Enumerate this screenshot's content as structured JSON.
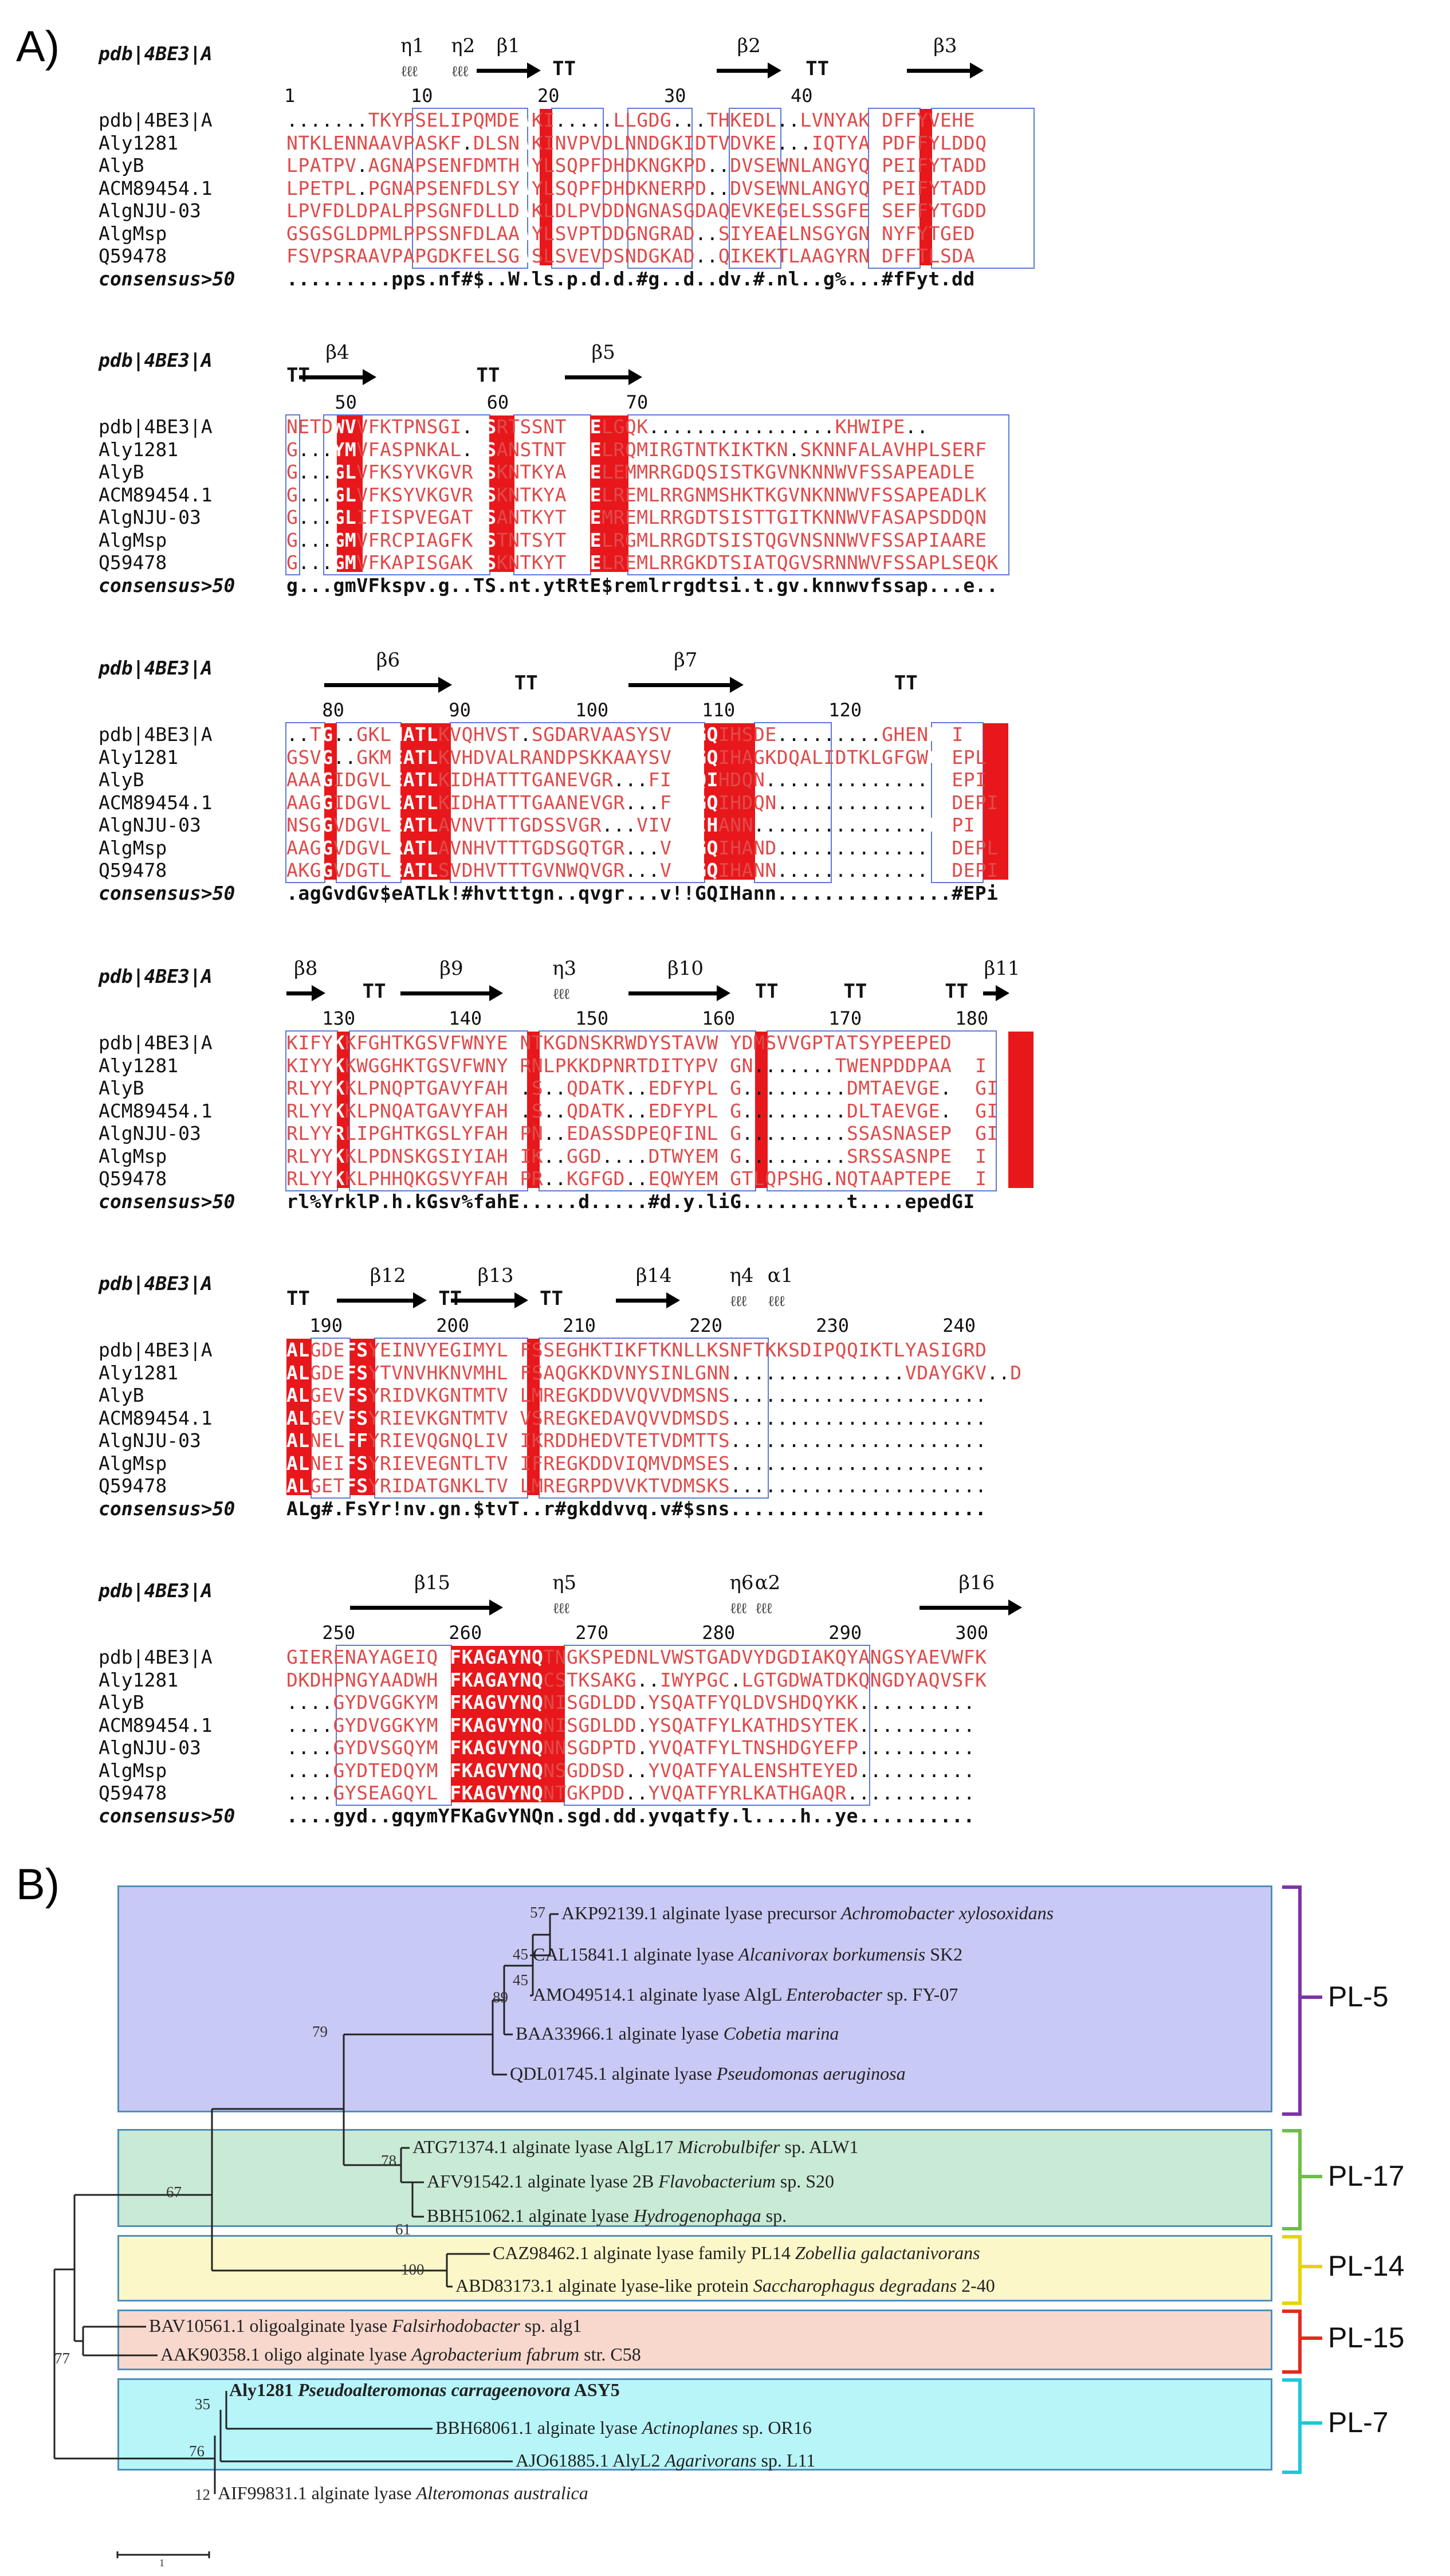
{
  "panels": {
    "a_label": "A)",
    "b_label": "B)"
  },
  "alignment": {
    "row_names": [
      "pdb|4BE3|A",
      "Aly1281",
      "AlyB",
      "ACM89454.1",
      "AlgNJU-03",
      "AlgMsp",
      "Q59478"
    ],
    "header_name": "pdb|4BE3|A",
    "consensus_name": "consensus>50",
    "blocks": [
      {
        "ruler": [
          "1",
          "10",
          "20",
          "30",
          "40"
        ],
        "ss": [
          "η1",
          "η2",
          "β1",
          "TT",
          "β2",
          "TT",
          "β3"
        ],
        "rows": [
          ".......TKYPSELIPQMDEWKI.....LLGDG...THKEDL..LVNYAKDDFFYVEHE",
          "NTKLENNAAVPASKF.DLSNWKINVPVDLNNDGKIDTVDVKE...IQTYAHPDFFYLDDQ",
          "LPATPV.AGNAPSENFDMTHWYLSQPFDHDKNGKPD..DVSEWNLANGYQHPEIFYTADD",
          "LPETPL.PGNAPSENFDLSYWYLSQPFDHDKNERPD..DVSEWNLANGYQHPEIFYTADD",
          "LPVFDLDPALPPSGNFDLLDWKLDLPVDDNGNASGDAQEVKEGELSSGFENSEFFYTGDD",
          "GSGSGLDPMLPPSSNFDLAAWYLSVPTDDGNGRAD..SIYEAELNSGYGNSNYFYTGED",
          "FSVPSRAAVPAPGDKFELSGWSLSVEVDSNDGKAD..QIKEKTLAAGYRNSDFFTLSDA"
        ],
        "consensus": ".........pps.nf#$..W.ls.p.d.d.#g..d..dv.#.nl..g%...#fFyt.dd"
      },
      {
        "ruler": [
          "50",
          "60",
          "70"
        ],
        "ss": [
          "TT",
          "β4",
          "TT",
          "β5"
        ],
        "rows": [
          "NETDWVVFKTPNSGI.TSRTSSNTRTELGQK................KHWIPE..",
          "G...YMVFASPNKAL.TSANSTNTRSELRQMIRGTNTKIKTKN.SKNNFALAVHPLSERF",
          "G...GLVFKSYVKGVRTSKNTKYARTELEMMRRGDQSISTKGVNKNNWVFSSAPEADLE",
          "G...GLVFKSYVKGVRTSKNTKYARTELREMLRRGNMSHKTKGVNKNNWVFSSAPEADLK",
          "G...GLIFISPVEGATTSANTKYTRSEMREMLRRGDTSISTTGITKNNWVFASAPSDDQN",
          "G...GMVFRCPIAGFKTSTNTSYTRTELRGMLRRGDTSISTQGVNSNNWVFSSAPIAARE",
          "G...GMVFKAPISGAKTSKNTKYTRTELREMLRRGKDTSIATQGVSRNNWVFSSAPLSEQK"
        ],
        "consensus": "g...gmVFkspv.g..TS.nt.ytRtE$remlrrgdtsi.t.gv.knnwvfssap...e.."
      },
      {
        "ruler": [
          "80",
          "90",
          "100",
          "110",
          "120"
        ],
        "ss": [
          "β6",
          "TT",
          "β7",
          "TT"
        ],
        "rows": [
          "..TG..GKLNATLKVQHVST.SGDARVAASYSVVVGQIHSDE.........GHENEPI",
          "GSVG..GKMEATLKVHDVALRANDPSKKAAYSVVVGQIHAGKDQALIDTKLGFGWGNEPL",
          "AAAGIDGVLEATLKIDHATTTGANEVGR...FIIGQIHDQN...............DEPI",
          "AAGGIDGVLEATLKIDHATTTGAANEVGR...FIIGQIHDQN...............DEPI",
          "NSGGVDGVLEATLAVNVTTTGDSSVGR...VIVGQIHANN...............DEPI",
          "AAGGVDGVLRATLAVNHVTTTGDSGQTGR...VIVGQIHAND...............DEPL",
          "AKGGVDGTLEATLSVDHVTTTGVNWQVGR...VIIGQIHANN...............DEPI"
        ],
        "consensus": ".agGvdGv$eATLk!#hvtttgn..qvgr...v!!GQIHann...............#EPi"
      },
      {
        "ruler": [
          "130",
          "140",
          "150",
          "160",
          "170",
          "180"
        ],
        "ss": [
          "β8",
          "TT",
          "β9",
          "η3",
          "β10",
          "TT",
          "TT",
          "TT",
          "β11"
        ],
        "rows": [
          "KIFYKKFGHTKGSVFWNYEINTKGDNSKRWDYSTAVWGYDMSVVGPTATSYPEEPEDGI",
          "KIYYKKWGGHKTGSVFWNYERNLPKKDPNRTDITYPVWGN.......TWENPDDPAANGI",
          "RLYYKKLPNQPTGAVYFAHE.S..QDATK..EDFYPLVG.........DMTAEVGE..DGI",
          "RLYYKKLPNQATGAVYFAHE.S..QDATK..EDFYPLVG.........DLTAEVGE..DGI",
          "RLYYRLIPGHTKGSLYFAHEPN..EDASSDPEQFINLIG.........SSASNASEPEDGI",
          "RLYYKKLPDNSKGSIYIAHEIK..GGD....DTWYEMIG.........SRSSASNPEDGI",
          "RLYYKKLPHHQKGSVYFAHEPR..KGFGD..EQWYEMIGTLQPSHG.NQTAAPTEPEAGI"
        ],
        "consensus": "rl%YrklP.h.kGsv%fahE.....d.....#d.y.liG.........t....epedGI"
      },
      {
        "ruler": [
          "190",
          "200",
          "210",
          "220",
          "230",
          "240"
        ],
        "ss": [
          "TT",
          "β12",
          "TT",
          "β13",
          "TT",
          "β14",
          "η4",
          "α1"
        ],
        "rows": [
          "ALGDEFSYEINVYEGIMYLTFSSEGHKTIKFTKNLLKSNFTKKSDIPQQIKTLYASIGRD",
          "ALGDEFSYTVNVHKNVMHLTFSAQGKKDVNYSINLGNN...............VDAYGKV..D",
          "ALGEVFSYRIDVKGNTMTVTLMREGKDDVVQVVDMSNS......................",
          "ALGEVFSYRIEVKGNTMTVTVSREGKEDAVQVVDMSDS......................",
          "ALNELFFYRIEVQGNQLIVTIKRDDHEDVTETVDMTTS......................",
          "ALNEIFSYRIEVEGNTLTVTIFREGKDDVIQMVDMSES......................",
          "ALGETFSYRIDATGNKLTVTLMREGRPDVVKTVDMSKS......................"
        ],
        "consensus": "ALg#.FsYr!nv.gn.$tvT..r#gkddvvq.v#$sns......................"
      },
      {
        "ruler": [
          "250",
          "260",
          "270",
          "280",
          "290",
          "300"
        ],
        "ss": [
          "β15",
          "η5",
          "η6",
          "α2",
          "β16"
        ],
        "rows": [
          "GIERENAYAGEIQYFKAGAYNQTNGKSPEDNLVWSTGADVYDGDIAKQYANGSYAEVWFK",
          "DKDHPNGYAADWHYFKAGAYNQCSTKSAKG..IWYPGC.LGTGDWATDKQNGDYAQVSFK",
          "....GYDVGGKYMYFKAGVYNQNISGDLDD.YSQATFYQLDVSHDQYKK..........",
          "....GYDVGGKYMYFKAGVYNQNISGDLDD.YSQATFYLKATHDSYTEK..........",
          "....GYDVSGQYMYFKAGVYNQNNSGDPTD.YVQATFYLTNSHDGYEFP..........",
          "....GYDTEDQYMYFKAGVYNQNSGDDSD..YVQATFYALENSHTEYED..........",
          "....GYSEAGQYLYFKAGVYNQNTGKPDD..YVQATFYRLKATHGAQR..........."
        ],
        "consensus": "....gyd..gqymYFKaGvYNQn.sgd.dd.yvqatfy.l....h..ye.........."
      }
    ]
  },
  "tree": {
    "scale_label": "1",
    "clades": [
      {
        "family": "PL-5",
        "color": "#7b34a8",
        "bg": "#c9c9f5",
        "leaves": [
          {
            "acc": "AKP92139.1 alginate lyase precursor",
            "org": "Achromobacter xylosoxidans",
            "strain": ""
          },
          {
            "acc": "CAL15841.1 alginate lyase",
            "org": "Alcanivorax borkumensis",
            "strain": "SK2"
          },
          {
            "acc": "AMO49514.1 alginate lyase AlgL",
            "org": "Enterobacter",
            "strain": "sp. FY-07"
          },
          {
            "acc": "BAA33966.1 alginate lyase",
            "org": "Cobetia marina",
            "strain": ""
          },
          {
            "acc": "QDL01745.1 alginate lyase",
            "org": "Pseudomonas aeruginosa",
            "strain": ""
          }
        ]
      },
      {
        "family": "PL-17",
        "color": "#6dbe45",
        "bg": "#c9ead5",
        "leaves": [
          {
            "acc": "ATG71374.1 alginate lyase AlgL17",
            "org": "Microbulbifer",
            "strain": "sp. ALW1"
          },
          {
            "acc": "AFV91542.1 alginate lyase 2B",
            "org": "Flavobacterium",
            "strain": "sp. S20"
          },
          {
            "acc": "BBH51062.1 alginate lyase",
            "org": "Hydrogenophaga",
            "strain": "sp."
          }
        ]
      },
      {
        "family": "PL-14",
        "color": "#e6d400",
        "bg": "#fbf7c9",
        "leaves": [
          {
            "acc": "CAZ98462.1 alginate lyase family PL14",
            "org": "Zobellia galactanivorans",
            "strain": ""
          },
          {
            "acc": "ABD83173.1 alginate lyase-like protein",
            "org": "Saccharophagus degradans",
            "strain": "2-40"
          }
        ]
      },
      {
        "family": "PL-15",
        "color": "#e32a1e",
        "bg": "#f8d8cd",
        "leaves": [
          {
            "acc": "BAV10561.1 oligoalginate lyase",
            "org": "Falsirhodobacter",
            "strain": "sp. alg1"
          },
          {
            "acc": "AAK90358.1 oligo alginate lyase",
            "org": "Agrobacterium fabrum",
            "strain": "str. C58"
          }
        ]
      },
      {
        "family": "PL-7",
        "color": "#1ec8d8",
        "bg": "#b7f5f9",
        "leaves": [
          {
            "acc": "Aly1281",
            "org": "Pseudoalteromonas carrageenovora",
            "strain": "ASY5"
          },
          {
            "acc": "BBH68061.1 alginate lyase",
            "org": "Actinoplanes",
            "strain": "sp. OR16"
          },
          {
            "acc": "AJO61885.1 AlyL2",
            "org": "Agarivorans",
            "strain": "sp. L11"
          },
          {
            "acc": "AIF99831.1 alginate lyase",
            "org": "Alteromonas australica",
            "strain": ""
          }
        ]
      }
    ],
    "bootstrap": [
      "57",
      "45",
      "45",
      "89",
      "79",
      "78",
      "61",
      "67",
      "100",
      "77",
      "35",
      "76",
      "12"
    ]
  }
}
